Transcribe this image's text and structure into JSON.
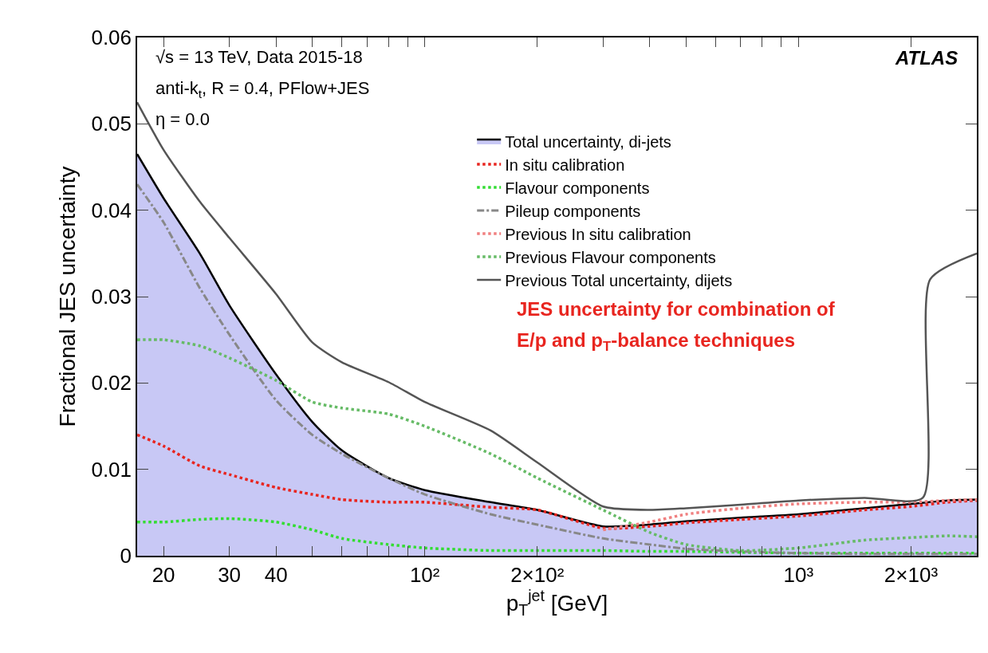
{
  "chart_data": {
    "type": "line",
    "ylabel": "Fractional JES uncertainty",
    "xlabel": "p$_{T}$$^{jet}$ [GeV]",
    "x": [
      17,
      20,
      25,
      30,
      40,
      50,
      60,
      80,
      100,
      150,
      200,
      300,
      400,
      500,
      700,
      1000,
      1500,
      2000,
      2500,
      3000
    ],
    "log": "x",
    "xlim": [
      17,
      3000
    ],
    "xticks": [
      20,
      30,
      40,
      {
        "value": 50,
        "label": null
      },
      {
        "value": 60,
        "label": null
      },
      {
        "value": 70,
        "label": null
      },
      {
        "value": 80,
        "label": null
      },
      {
        "value": 90,
        "label": null
      },
      {
        "value": 100,
        "label": "10²"
      },
      {
        "value": 200,
        "label": "2×10²"
      },
      {
        "value": 300,
        "label": null
      },
      {
        "value": 400,
        "label": null
      },
      {
        "value": 500,
        "label": null
      },
      {
        "value": 600,
        "label": null
      },
      {
        "value": 700,
        "label": null
      },
      {
        "value": 800,
        "label": null
      },
      {
        "value": 900,
        "label": null
      },
      {
        "value": 1000,
        "label": "10³"
      },
      {
        "value": 2000,
        "label": "2×10³"
      },
      {
        "value": 3000,
        "label": null
      }
    ],
    "ylim": [
      0,
      0.06
    ],
    "yticks": [
      0,
      0.01,
      0.02,
      0.03,
      0.04,
      0.05,
      0.06
    ],
    "grid": false,
    "legend": "top right",
    "series": [
      {
        "name": "Total uncertainty, di-jets",
        "type": "area",
        "color": "#000000",
        "line_style": "solid",
        "values": [
          0.0465,
          0.0414,
          0.035,
          0.029,
          0.021,
          0.0155,
          0.0122,
          0.009,
          0.0076,
          0.0062,
          0.0053,
          0.0034,
          0.0036,
          0.004,
          0.0044,
          0.0048,
          0.0055,
          0.006,
          0.0064,
          0.0065
        ]
      },
      {
        "name": "In situ calibration",
        "color": "#e8251f",
        "line_style": "dotted",
        "values": [
          0.014,
          0.0127,
          0.0104,
          0.0094,
          0.0079,
          0.0071,
          0.0065,
          0.0062,
          0.0062,
          0.0056,
          0.0053,
          0.0032,
          0.0034,
          0.0038,
          0.0042,
          0.0046,
          0.0053,
          0.0057,
          0.0062,
          0.0064
        ]
      },
      {
        "name": "Flavour components",
        "color": "#33dd33",
        "line_style": "dotted",
        "values": [
          0.0039,
          0.0039,
          0.0042,
          0.0043,
          0.0039,
          0.003,
          0.002,
          0.0013,
          0.0009,
          0.0006,
          0.0006,
          0.0006,
          0.0005,
          0.0005,
          0.0004,
          0.0003,
          0.0003,
          0.0003,
          0.0003,
          0.0003
        ]
      },
      {
        "name": "Pileup components",
        "color": "#888888",
        "line_style": "dashed",
        "values": [
          0.043,
          0.0386,
          0.031,
          0.0256,
          0.018,
          0.014,
          0.0118,
          0.009,
          0.0071,
          0.0048,
          0.0036,
          0.002,
          0.0013,
          0.0008,
          0.0005,
          0.0003,
          0.0002,
          0.0002,
          0.0002,
          0.0002
        ]
      },
      {
        "name": "Previous In situ calibration",
        "color": "#f08080",
        "line_style": "dotted",
        "values": [
          null,
          null,
          null,
          null,
          null,
          null,
          null,
          null,
          null,
          null,
          null,
          0.003,
          0.0039,
          0.0048,
          0.0055,
          0.006,
          0.0062,
          0.0062,
          0.0064,
          0.0065
        ]
      },
      {
        "name": "Previous Flavour components",
        "color": "#66bb66",
        "line_style": "dotted",
        "values": [
          0.025,
          0.025,
          0.0243,
          0.0229,
          0.0203,
          0.0178,
          0.0171,
          0.0164,
          0.015,
          0.0118,
          0.009,
          0.0053,
          0.0027,
          0.0013,
          0.0006,
          0.0009,
          0.0018,
          0.0021,
          0.0023,
          0.0022
        ]
      },
      {
        "name": "Previous Total uncertainty, dijets",
        "color": "#555555",
        "line_style": "solid",
        "x": [
          17,
          20,
          25,
          30,
          40,
          50,
          60,
          80,
          100,
          150,
          200,
          300,
          400,
          500,
          700,
          1000,
          1500,
          2150,
          2250,
          3000
        ],
        "values": [
          0.0525,
          0.047,
          0.041,
          0.0368,
          0.0303,
          0.0247,
          0.0224,
          0.0201,
          0.0178,
          0.0145,
          0.0108,
          0.0057,
          0.0053,
          0.0055,
          0.0059,
          0.0064,
          0.0067,
          0.0067,
          0.032,
          0.035
        ]
      }
    ],
    "annotations": [
      "√s = 13 TeV, Data 2015-18",
      "anti-k$_{t}$, R = 0.4, PFlow+JES",
      "η = 0.0",
      "ATLAS",
      "JES uncertainty for combination of",
      "E/p and p$_{T}$-balance techniques"
    ]
  }
}
